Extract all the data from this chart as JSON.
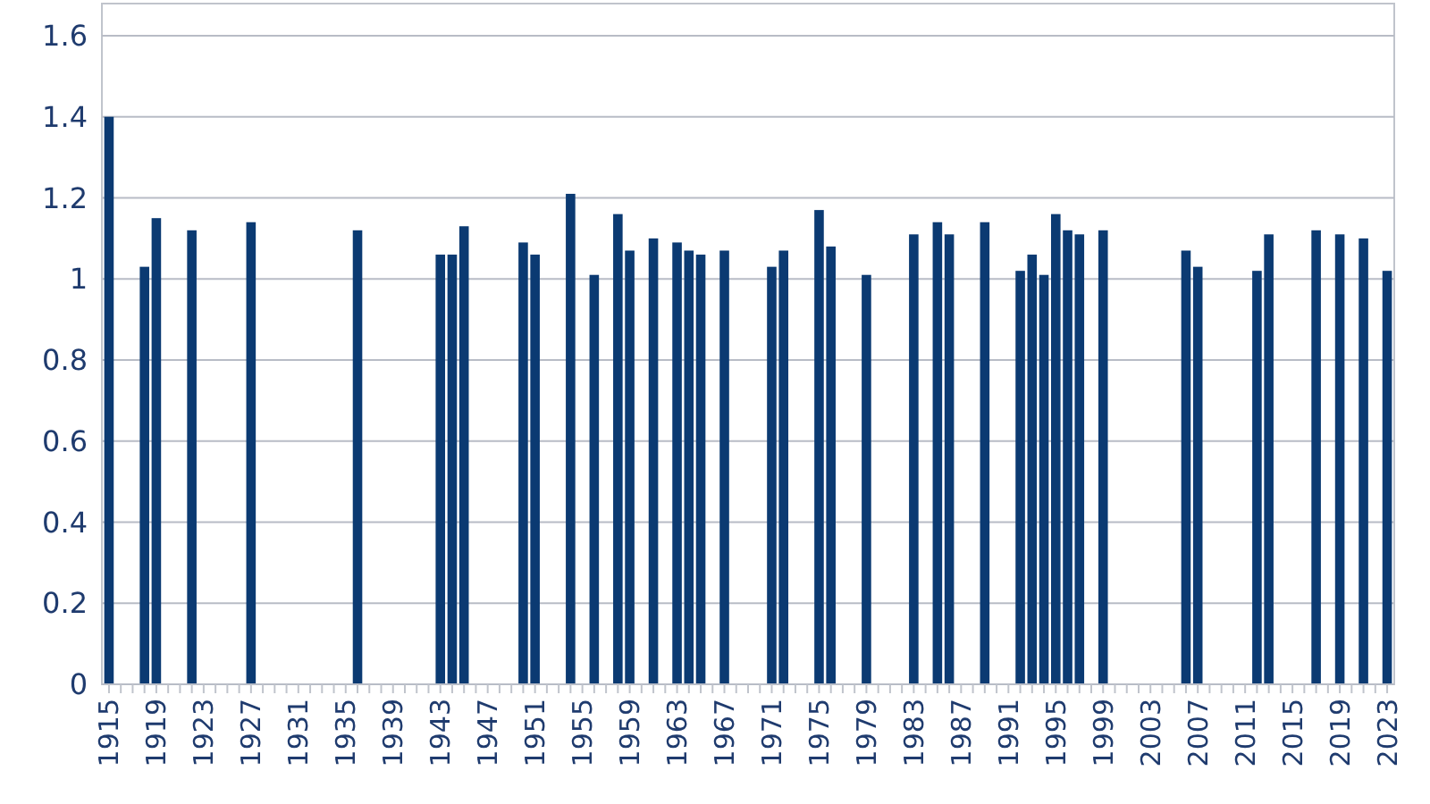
{
  "chart_data": {
    "type": "bar",
    "color": "#0b3a72",
    "grid": "y",
    "ylim": [
      0,
      1.6
    ],
    "yticks": [
      0,
      0.2,
      0.4,
      0.6,
      0.8,
      1,
      1.2,
      1.4,
      1.6
    ],
    "categories": [
      "1915",
      null,
      null,
      null,
      "1919",
      null,
      null,
      null,
      "1923",
      null,
      null,
      null,
      "1927",
      null,
      null,
      null,
      "1931",
      null,
      null,
      null,
      "1935",
      null,
      null,
      null,
      "1939",
      null,
      null,
      null,
      "1943",
      null,
      null,
      null,
      "1947",
      null,
      null,
      null,
      "1951",
      null,
      null,
      null,
      "1955",
      null,
      null,
      null,
      "1959",
      null,
      null,
      null,
      "1963",
      null,
      null,
      null,
      "1967",
      null,
      null,
      null,
      "1971",
      null,
      null,
      null,
      "1975",
      null,
      null,
      null,
      "1979",
      null,
      null,
      null,
      "1983",
      null,
      null,
      null,
      "1987",
      null,
      null,
      null,
      "1991",
      null,
      null,
      null,
      "1995",
      null,
      null,
      null,
      "1999",
      null,
      null,
      null,
      "2003",
      null,
      null,
      null,
      "2007",
      null,
      null,
      null,
      "2011",
      null,
      null,
      null,
      "2015",
      null,
      null,
      null,
      "2019",
      null,
      null,
      null,
      "2023"
    ],
    "values": [
      1.4,
      null,
      null,
      1.03,
      1.15,
      null,
      null,
      1.12,
      null,
      null,
      null,
      null,
      1.14,
      null,
      null,
      null,
      null,
      null,
      null,
      null,
      null,
      1.12,
      null,
      null,
      null,
      null,
      null,
      null,
      1.06,
      1.06,
      1.13,
      null,
      null,
      null,
      null,
      1.09,
      1.06,
      null,
      null,
      1.21,
      null,
      1.01,
      null,
      1.16,
      1.07,
      null,
      1.1,
      null,
      1.09,
      1.07,
      1.06,
      null,
      1.07,
      null,
      null,
      null,
      1.03,
      1.07,
      null,
      null,
      1.17,
      1.08,
      null,
      null,
      1.01,
      null,
      null,
      null,
      1.11,
      null,
      1.14,
      1.11,
      null,
      null,
      1.14,
      null,
      null,
      1.02,
      1.06,
      1.01,
      1.16,
      1.12,
      1.11,
      null,
      1.12,
      null,
      null,
      null,
      null,
      null,
      null,
      1.07,
      1.03,
      null,
      null,
      null,
      null,
      1.02,
      1.11,
      null,
      null,
      null,
      1.12,
      null,
      1.11,
      null,
      1.1,
      null,
      1.02
    ]
  }
}
